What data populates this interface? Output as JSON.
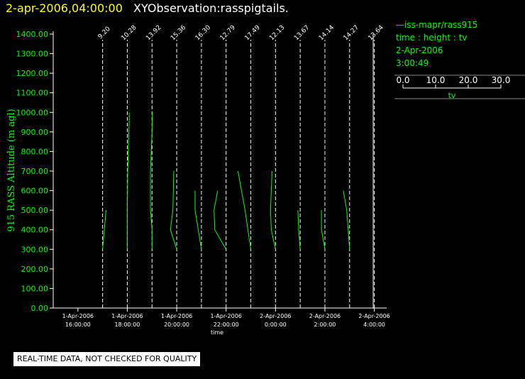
{
  "header": {
    "time_label": "2-apr-2006,04:00:00",
    "title": "XYObservation:rasspigtails."
  },
  "legend": {
    "series_label": "iss-mapr/rass915",
    "subtitle": "time : height : tv",
    "date": "2-Apr-2006",
    "time": "3:00:49",
    "scale_ticks": [
      "0.0",
      "10.0",
      "20.0",
      "30.0"
    ],
    "scale_label": "tv",
    "scale_range": [
      0,
      30
    ]
  },
  "disclaimer": "REAL-TIME DATA, NOT CHECKED FOR QUALITY",
  "colors": {
    "series": "#00ff00",
    "axes": "#ffffff",
    "time_label": "#ffff00",
    "background": "#000000"
  },
  "chart_data": {
    "type": "line",
    "ylabel": "915 RASS Altitude (m agl)",
    "xlabel": "time",
    "ylim": [
      0,
      1400
    ],
    "yticks": [
      "0.00",
      "100.00",
      "200.00",
      "300.00",
      "400.00",
      "500.00",
      "600.00",
      "700.00",
      "800.00",
      "900.00",
      "1000.00",
      "1100.00",
      "1200.00",
      "1300.00",
      "1400.00"
    ],
    "xlim": [
      "2006-04-01 15:00",
      "2006-04-02 04:30"
    ],
    "xticks": [
      {
        "at": "2006-04-01 16:00",
        "date": "1-Apr-2006",
        "time": "16:00:00"
      },
      {
        "at": "2006-04-01 18:00",
        "date": "1-Apr-2006",
        "time": "18:00:00"
      },
      {
        "at": "2006-04-01 20:00",
        "date": "1-Apr-2006",
        "time": "20:00:00"
      },
      {
        "at": "2006-04-01 22:00",
        "date": "1-Apr-2006",
        "time": "22:00:00"
      },
      {
        "at": "2006-04-02 00:00",
        "date": "2-Apr-2006",
        "time": "0:00:00"
      },
      {
        "at": "2006-04-02 02:00",
        "date": "2-Apr-2006",
        "time": "2:00:00"
      },
      {
        "at": "2006-04-02 04:00",
        "date": "2-Apr-2006",
        "time": "4:00:00"
      }
    ],
    "profiles": [
      {
        "time": "2006-04-01 17:00",
        "label": "9.20",
        "points": [
          [
            1.8,
            500
          ],
          [
            0,
            300
          ]
        ]
      },
      {
        "time": "2006-04-01 18:00",
        "label": "10.28",
        "points": [
          [
            0,
            300
          ],
          [
            0,
            500
          ],
          [
            0.2,
            700
          ],
          [
            0.8,
            900
          ],
          [
            1.0,
            950
          ],
          [
            1.0,
            1000
          ]
        ]
      },
      {
        "time": "2006-04-01 19:00",
        "label": "13.92",
        "points": [
          [
            0,
            300
          ],
          [
            0,
            400
          ],
          [
            -0.8,
            500
          ],
          [
            -0.8,
            700
          ],
          [
            0,
            900
          ],
          [
            0.2,
            1000
          ]
        ]
      },
      {
        "time": "2006-04-01 20:00",
        "label": "15.36",
        "points": [
          [
            0,
            300
          ],
          [
            -3.3,
            400
          ],
          [
            -2.0,
            500
          ],
          [
            -1.5,
            700
          ]
        ]
      },
      {
        "time": "2006-04-01 21:00",
        "label": "16.30",
        "points": [
          [
            0,
            300
          ],
          [
            -3.3,
            500
          ],
          [
            -3.3,
            600
          ]
        ]
      },
      {
        "time": "2006-04-01 22:00",
        "label": "12.79",
        "points": [
          [
            0,
            300
          ],
          [
            -5.9,
            400
          ],
          [
            -6.3,
            500
          ],
          [
            -4.4,
            600
          ]
        ]
      },
      {
        "time": "2006-04-01 23:00",
        "label": "17.49",
        "points": [
          [
            0,
            300
          ],
          [
            -3.0,
            500
          ],
          [
            -6.7,
            700
          ]
        ]
      },
      {
        "time": "2006-04-02 00:00",
        "label": "12.13",
        "points": [
          [
            0,
            300
          ],
          [
            -2.2,
            400
          ],
          [
            -2.6,
            500
          ],
          [
            -1.8,
            700
          ]
        ]
      },
      {
        "time": "2006-04-02 01:00",
        "label": "13.67",
        "points": [
          [
            0,
            300
          ],
          [
            -0.8,
            400
          ],
          [
            -1.2,
            500
          ]
        ]
      },
      {
        "time": "2006-04-02 02:00",
        "label": "14.14",
        "points": [
          [
            0,
            300
          ],
          [
            -1.8,
            400
          ],
          [
            -1.8,
            500
          ]
        ]
      },
      {
        "time": "2006-04-02 03:00",
        "label": "14.27",
        "points": [
          [
            0,
            300
          ],
          [
            -1.5,
            500
          ],
          [
            -3.3,
            600
          ]
        ]
      },
      {
        "time": "2006-04-02 04:00",
        "label": "13.64",
        "points": []
      }
    ]
  }
}
